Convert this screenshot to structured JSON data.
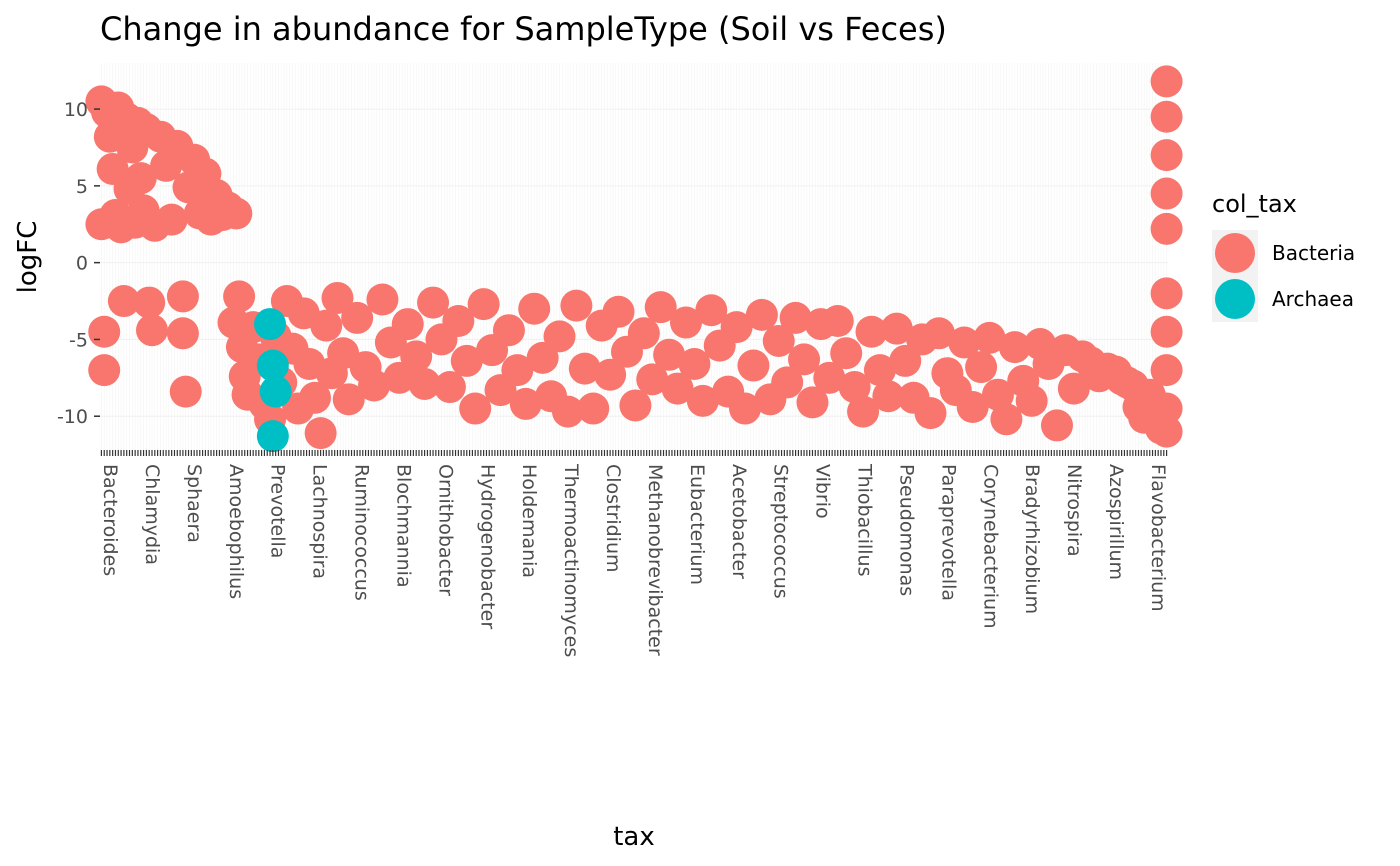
{
  "chart_data": {
    "type": "scatter",
    "title": "Change in abundance for SampleType (Soil vs Feces)",
    "xlabel": "tax",
    "ylabel": "logFC",
    "ylim": [
      -12.2,
      13
    ],
    "yticks": [
      10,
      5,
      0,
      -5,
      -10
    ],
    "ytick_labels": [
      "10",
      "5",
      "0",
      "-5",
      "-10"
    ],
    "x_category_count": 380,
    "grid": true,
    "panel_background": "#ffffff",
    "legend": {
      "title": "col_tax",
      "placement": "right",
      "entries": [
        {
          "label": "Bacteria",
          "color": "#F8766D"
        },
        {
          "label": "Archaea",
          "color": "#00BFC4"
        }
      ]
    },
    "x_tick_labels_visible": [
      "Bacteroides",
      "Chlamydia",
      "Sphaera",
      "Amoebophilus",
      "Prevotella",
      "Lachnospira",
      "Ruminococcus",
      "Blochmannia",
      "Ornithobacter",
      "Hydrogenobacter",
      "Holdemania",
      "Thermoactinomyces",
      "Clostridium",
      "Methanobrevibacter",
      "Eubacterium",
      "Acetobacter",
      "Streptococcus",
      "Vibrio",
      "Thiobacillus",
      "Pseudomonas",
      "Paraprevotella",
      "Corynebacterium",
      "Bradyrhizobium",
      "Nitrospira",
      "Azospirillum",
      "Flavobacterium"
    ],
    "series": [
      {
        "name": "Bacteria",
        "color": "#F8766D",
        "points": [
          {
            "x": 1,
            "y": 10.5
          },
          {
            "x": 1,
            "y": 2.5
          },
          {
            "x": 2,
            "y": -7
          },
          {
            "x": 2,
            "y": -4.5
          },
          {
            "x": 3,
            "y": 9.8
          },
          {
            "x": 4,
            "y": 8.2
          },
          {
            "x": 5,
            "y": 6.1
          },
          {
            "x": 6,
            "y": 3.1
          },
          {
            "x": 7,
            "y": 10.1
          },
          {
            "x": 8,
            "y": 2.3
          },
          {
            "x": 9,
            "y": -2.5
          },
          {
            "x": 10,
            "y": 9.4
          },
          {
            "x": 11,
            "y": 4.8
          },
          {
            "x": 12,
            "y": 7.5
          },
          {
            "x": 13,
            "y": 2.6
          },
          {
            "x": 14,
            "y": 9.1
          },
          {
            "x": 15,
            "y": 5.5
          },
          {
            "x": 16,
            "y": 3.4
          },
          {
            "x": 17,
            "y": 8.7
          },
          {
            "x": 18,
            "y": -2.6
          },
          {
            "x": 19,
            "y": -4.4
          },
          {
            "x": 20,
            "y": 2.4
          },
          {
            "x": 22,
            "y": 8.2
          },
          {
            "x": 24,
            "y": 6.3
          },
          {
            "x": 26,
            "y": 2.8
          },
          {
            "x": 28,
            "y": 7.6
          },
          {
            "x": 30,
            "y": -2.2
          },
          {
            "x": 30,
            "y": -4.6
          },
          {
            "x": 31,
            "y": -8.4
          },
          {
            "x": 32,
            "y": 4.9
          },
          {
            "x": 34,
            "y": 6.7
          },
          {
            "x": 36,
            "y": 3.2
          },
          {
            "x": 38,
            "y": 5.8
          },
          {
            "x": 40,
            "y": 2.8
          },
          {
            "x": 42,
            "y": 4.4
          },
          {
            "x": 44,
            "y": 3.1
          },
          {
            "x": 46,
            "y": 3.6
          },
          {
            "x": 48,
            "y": -3.9
          },
          {
            "x": 49,
            "y": 3.2
          },
          {
            "x": 50,
            "y": -2.2
          },
          {
            "x": 51,
            "y": -5.5
          },
          {
            "x": 52,
            "y": -7.4
          },
          {
            "x": 53,
            "y": -8.6
          },
          {
            "x": 55,
            "y": -4.2
          },
          {
            "x": 57,
            "y": -6.3
          },
          {
            "x": 59,
            "y": -9.2
          },
          {
            "x": 61,
            "y": -10.2
          },
          {
            "x": 63,
            "y": -4.8
          },
          {
            "x": 65,
            "y": -7.8
          },
          {
            "x": 67,
            "y": -2.5
          },
          {
            "x": 69,
            "y": -5.6
          },
          {
            "x": 71,
            "y": -9.5
          },
          {
            "x": 73,
            "y": -3.3
          },
          {
            "x": 75,
            "y": -6.6
          },
          {
            "x": 77,
            "y": -8.8
          },
          {
            "x": 79,
            "y": -11.1
          },
          {
            "x": 81,
            "y": -4.1
          },
          {
            "x": 83,
            "y": -7.2
          },
          {
            "x": 85,
            "y": -2.3
          },
          {
            "x": 87,
            "y": -5.9
          },
          {
            "x": 89,
            "y": -8.9
          },
          {
            "x": 92,
            "y": -3.6
          },
          {
            "x": 95,
            "y": -6.8
          },
          {
            "x": 98,
            "y": -8.0
          },
          {
            "x": 101,
            "y": -2.4
          },
          {
            "x": 104,
            "y": -5.2
          },
          {
            "x": 107,
            "y": -7.5
          },
          {
            "x": 110,
            "y": -4.0
          },
          {
            "x": 113,
            "y": -6.1
          },
          {
            "x": 116,
            "y": -7.9
          },
          {
            "x": 119,
            "y": -2.6
          },
          {
            "x": 122,
            "y": -5.0
          },
          {
            "x": 125,
            "y": -8.1
          },
          {
            "x": 128,
            "y": -3.8
          },
          {
            "x": 131,
            "y": -6.4
          },
          {
            "x": 134,
            "y": -9.5
          },
          {
            "x": 137,
            "y": -2.7
          },
          {
            "x": 140,
            "y": -5.7
          },
          {
            "x": 143,
            "y": -8.3
          },
          {
            "x": 146,
            "y": -4.4
          },
          {
            "x": 149,
            "y": -7.0
          },
          {
            "x": 152,
            "y": -9.2
          },
          {
            "x": 155,
            "y": -3.0
          },
          {
            "x": 158,
            "y": -6.2
          },
          {
            "x": 161,
            "y": -8.7
          },
          {
            "x": 164,
            "y": -4.8
          },
          {
            "x": 167,
            "y": -9.7
          },
          {
            "x": 170,
            "y": -2.8
          },
          {
            "x": 173,
            "y": -6.9
          },
          {
            "x": 176,
            "y": -9.5
          },
          {
            "x": 179,
            "y": -4.1
          },
          {
            "x": 182,
            "y": -7.3
          },
          {
            "x": 185,
            "y": -3.2
          },
          {
            "x": 188,
            "y": -5.8
          },
          {
            "x": 191,
            "y": -9.3
          },
          {
            "x": 194,
            "y": -4.6
          },
          {
            "x": 197,
            "y": -7.6
          },
          {
            "x": 200,
            "y": -2.9
          },
          {
            "x": 203,
            "y": -6.0
          },
          {
            "x": 206,
            "y": -8.2
          },
          {
            "x": 209,
            "y": -3.9
          },
          {
            "x": 212,
            "y": -6.6
          },
          {
            "x": 215,
            "y": -9.0
          },
          {
            "x": 218,
            "y": -3.1
          },
          {
            "x": 221,
            "y": -5.4
          },
          {
            "x": 224,
            "y": -8.4
          },
          {
            "x": 227,
            "y": -4.2
          },
          {
            "x": 230,
            "y": -9.5
          },
          {
            "x": 233,
            "y": -6.7
          },
          {
            "x": 236,
            "y": -3.4
          },
          {
            "x": 239,
            "y": -8.9
          },
          {
            "x": 242,
            "y": -5.1
          },
          {
            "x": 245,
            "y": -7.8
          },
          {
            "x": 248,
            "y": -3.6
          },
          {
            "x": 251,
            "y": -6.3
          },
          {
            "x": 254,
            "y": -9.1
          },
          {
            "x": 257,
            "y": -4.0
          },
          {
            "x": 260,
            "y": -7.5
          },
          {
            "x": 263,
            "y": -3.8
          },
          {
            "x": 266,
            "y": -5.9
          },
          {
            "x": 269,
            "y": -8.1
          },
          {
            "x": 272,
            "y": -9.7
          },
          {
            "x": 275,
            "y": -4.5
          },
          {
            "x": 278,
            "y": -7.0
          },
          {
            "x": 281,
            "y": -8.7
          },
          {
            "x": 284,
            "y": -4.3
          },
          {
            "x": 287,
            "y": -6.4
          },
          {
            "x": 290,
            "y": -8.8
          },
          {
            "x": 293,
            "y": -5.0
          },
          {
            "x": 296,
            "y": -9.8
          },
          {
            "x": 299,
            "y": -4.6
          },
          {
            "x": 302,
            "y": -7.2
          },
          {
            "x": 305,
            "y": -8.3
          },
          {
            "x": 308,
            "y": -5.2
          },
          {
            "x": 311,
            "y": -9.4
          },
          {
            "x": 314,
            "y": -6.8
          },
          {
            "x": 317,
            "y": -4.9
          },
          {
            "x": 320,
            "y": -8.6
          },
          {
            "x": 323,
            "y": -10.2
          },
          {
            "x": 326,
            "y": -5.5
          },
          {
            "x": 329,
            "y": -7.7
          },
          {
            "x": 332,
            "y": -9.0
          },
          {
            "x": 335,
            "y": -5.3
          },
          {
            "x": 338,
            "y": -6.6
          },
          {
            "x": 341,
            "y": -10.6
          },
          {
            "x": 344,
            "y": -5.7
          },
          {
            "x": 347,
            "y": -8.2
          },
          {
            "x": 350,
            "y": -6.1
          },
          {
            "x": 353,
            "y": -6.5
          },
          {
            "x": 356,
            "y": -7.4
          },
          {
            "x": 359,
            "y": -6.9
          },
          {
            "x": 362,
            "y": -7.1
          },
          {
            "x": 364,
            "y": -7.6
          },
          {
            "x": 366,
            "y": -7.8
          },
          {
            "x": 368,
            "y": -8.0
          },
          {
            "x": 370,
            "y": -9.4
          },
          {
            "x": 372,
            "y": -10.1
          },
          {
            "x": 374,
            "y": -8.6
          },
          {
            "x": 376,
            "y": -9.9
          },
          {
            "x": 378,
            "y": -10.8
          },
          {
            "x": 380,
            "y": 11.8
          },
          {
            "x": 380,
            "y": 9.5
          },
          {
            "x": 380,
            "y": 7.0
          },
          {
            "x": 380,
            "y": 4.5
          },
          {
            "x": 380,
            "y": 2.2
          },
          {
            "x": 380,
            "y": -2.0
          },
          {
            "x": 380,
            "y": -4.5
          },
          {
            "x": 380,
            "y": -7.0
          },
          {
            "x": 380,
            "y": -9.5
          },
          {
            "x": 380,
            "y": -11.0
          }
        ]
      },
      {
        "name": "Archaea",
        "color": "#00BFC4",
        "points": [
          {
            "x": 62,
            "y": -11.3
          },
          {
            "x": 62,
            "y": -6.7
          },
          {
            "x": 63,
            "y": -8.4
          },
          {
            "x": 61,
            "y": -4.0
          }
        ]
      }
    ]
  }
}
